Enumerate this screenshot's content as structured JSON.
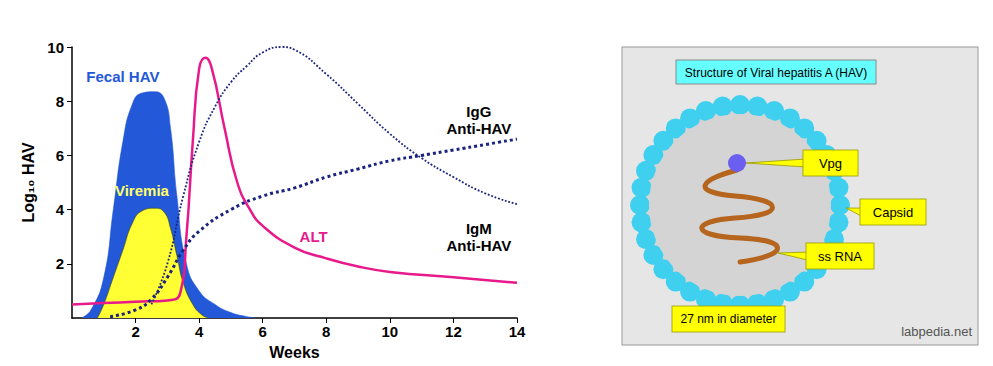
{
  "chart_data": {
    "type": "line",
    "xlabel": "Weeks",
    "ylabel": "Log₁₀ HAV",
    "xlim": [
      0,
      14
    ],
    "xticks": [
      2,
      4,
      6,
      8,
      10,
      12,
      14
    ],
    "ylim": [
      0,
      10
    ],
    "yticks": [
      2,
      4,
      6,
      8,
      10
    ],
    "grid": false,
    "marker": "none",
    "series": [
      {
        "name": "Fecal HAV",
        "type": "area",
        "color": "#2358d8",
        "line_style": "solid",
        "x": [
          0.3,
          0.6,
          1.0,
          1.3,
          1.6,
          1.9,
          2.2,
          2.6,
          2.9,
          3.1,
          3.3,
          3.6,
          4.0,
          4.5,
          5.0,
          5.5,
          5.8
        ],
        "values": [
          0.0,
          0.3,
          1.5,
          4.0,
          6.5,
          7.9,
          8.3,
          8.35,
          8.1,
          7.0,
          4.5,
          2.0,
          1.0,
          0.5,
          0.2,
          0.05,
          0.0
        ]
      },
      {
        "name": "Viremia",
        "type": "area",
        "color": "#ffff33",
        "line_style": "solid",
        "x": [
          0.8,
          1.0,
          1.3,
          1.6,
          1.9,
          2.2,
          2.6,
          2.9,
          3.1,
          3.3,
          3.5,
          3.8,
          4.1,
          4.3
        ],
        "values": [
          0.0,
          0.5,
          1.5,
          2.5,
          3.5,
          3.95,
          4.05,
          3.9,
          3.3,
          2.3,
          1.3,
          0.5,
          0.1,
          0.0
        ]
      },
      {
        "name": "ALT",
        "type": "line",
        "color": "#e8198b",
        "line_style": "solid",
        "x": [
          0,
          1,
          2,
          3,
          3.4,
          3.6,
          3.8,
          4.0,
          4.2,
          4.4,
          4.8,
          5.2,
          5.6,
          6.0,
          7.0,
          8.0,
          9.0,
          10.0,
          12.0,
          14.0
        ],
        "values": [
          0.5,
          0.55,
          0.6,
          0.65,
          0.9,
          3.0,
          6.5,
          9.2,
          9.6,
          9.2,
          7.0,
          5.0,
          4.0,
          3.4,
          2.6,
          2.2,
          1.9,
          1.7,
          1.5,
          1.3
        ]
      },
      {
        "name": "IgM\nAnti-HAV",
        "type": "line",
        "color": "#1a237e",
        "line_style": "dotted",
        "x": [
          2.5,
          3.0,
          3.5,
          4.0,
          4.5,
          5.0,
          5.5,
          6.0,
          6.6,
          7.0,
          8.0,
          9.0,
          10.0,
          11.0,
          12.0,
          13.0,
          14.0
        ],
        "values": [
          0.5,
          2.0,
          4.5,
          6.5,
          7.8,
          8.7,
          9.3,
          9.8,
          10.0,
          9.9,
          9.0,
          7.9,
          6.8,
          5.9,
          5.2,
          4.6,
          4.2
        ]
      },
      {
        "name": "IgG\nAnti-HAV",
        "type": "line",
        "color": "#1a237e",
        "line_style": "dotted",
        "x": [
          1.2,
          2.0,
          2.5,
          3.0,
          3.5,
          4.0,
          5.0,
          6.0,
          7.0,
          8.0,
          9.0,
          10.0,
          11.0,
          12.0,
          13.0,
          14.0
        ],
        "values": [
          0.05,
          0.3,
          0.7,
          1.5,
          2.5,
          3.2,
          4.0,
          4.5,
          4.8,
          5.2,
          5.5,
          5.8,
          6.0,
          6.2,
          6.4,
          6.6
        ]
      }
    ]
  },
  "diagram": {
    "title": "Structure of Viral hepatitis A (HAV)",
    "labels": [
      "Vpg",
      "Capsid",
      "ss RNA"
    ],
    "size": "27 nm in diameter",
    "credit": "labpedia.net"
  }
}
